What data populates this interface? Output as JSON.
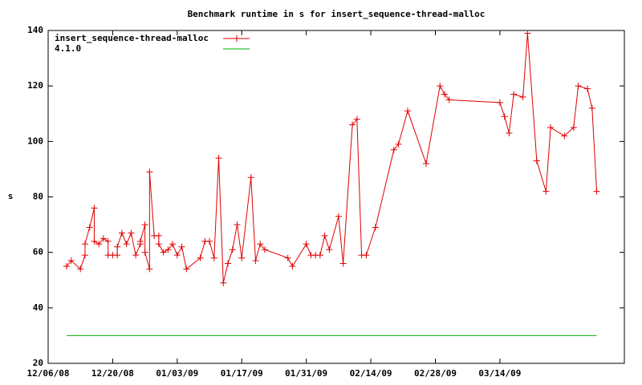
{
  "chart_data": {
    "type": "line",
    "title": "Benchmark runtime in s for insert_sequence-thread-malloc",
    "ylabel": "s",
    "xlim": [
      "12/06/08",
      "04/10/09"
    ],
    "xticks": [
      "12/06/08",
      "12/20/08",
      "01/03/09",
      "01/17/09",
      "01/31/09",
      "02/14/09",
      "02/28/09",
      "03/14/09"
    ],
    "ylim": [
      20,
      140
    ],
    "yticks": [
      20,
      40,
      60,
      80,
      100,
      120,
      140
    ],
    "legend": "top-left",
    "series": [
      {
        "name": "insert_sequence-thread-malloc",
        "color": "#e00000",
        "markers": true,
        "x": [
          "12/10/08",
          "12/11/08",
          "12/13/08",
          "12/14/08",
          "12/14/08",
          "12/15/08",
          "12/16/08",
          "12/16/08",
          "12/17/08",
          "12/18/08",
          "12/19/08",
          "12/19/08",
          "12/20/08",
          "12/21/08",
          "12/21/08",
          "12/22/08",
          "12/23/08",
          "12/24/08",
          "12/25/08",
          "12/26/08",
          "12/26/08",
          "12/27/08",
          "12/27/08",
          "12/28/08",
          "12/28/08",
          "12/29/08",
          "12/30/08",
          "12/30/08",
          "12/31/08",
          "01/01/09",
          "01/02/09",
          "01/03/09",
          "01/04/09",
          "01/05/09",
          "01/08/09",
          "01/09/09",
          "01/10/09",
          "01/11/09",
          "01/12/09",
          "01/13/09",
          "01/14/09",
          "01/15/09",
          "01/16/09",
          "01/17/09",
          "01/19/09",
          "01/20/09",
          "01/21/09",
          "01/22/09",
          "01/27/09",
          "01/28/09",
          "01/31/09",
          "02/01/09",
          "02/02/09",
          "02/03/09",
          "02/04/09",
          "02/05/09",
          "02/07/09",
          "02/08/09",
          "02/10/09",
          "02/11/09",
          "02/12/09",
          "02/13/09",
          "02/15/09",
          "02/19/09",
          "02/20/09",
          "02/22/09",
          "02/26/09",
          "03/01/09",
          "03/02/09",
          "03/03/09",
          "03/14/09",
          "03/15/09",
          "03/16/09",
          "03/17/09",
          "03/19/09",
          "03/20/09",
          "03/22/09",
          "03/24/09",
          "03/25/09",
          "03/28/09",
          "03/30/09",
          "03/31/09",
          "04/02/09",
          "04/03/09",
          "04/04/09"
        ],
        "values": [
          55,
          57,
          54,
          59,
          63,
          69,
          76,
          64,
          63,
          65,
          64,
          59,
          59,
          59,
          62,
          67,
          63,
          67,
          59,
          63,
          64,
          70,
          60,
          54,
          89,
          66,
          66,
          63,
          60,
          61,
          63,
          59,
          62,
          54,
          58,
          64,
          64,
          58,
          94,
          49,
          56,
          61,
          70,
          58,
          87,
          57,
          63,
          61,
          58,
          55,
          63,
          59,
          59,
          59,
          66,
          61,
          73,
          56,
          106,
          108,
          59,
          59,
          69,
          97,
          99,
          111,
          92,
          120,
          117,
          115,
          114,
          109,
          103,
          117,
          116,
          139,
          93,
          82,
          105,
          102,
          105,
          120,
          119,
          112,
          82
        ]
      },
      {
        "name": "4.1.0",
        "color": "#00b000",
        "markers": false,
        "x": [
          "12/10/08",
          "04/04/09"
        ],
        "values": [
          30,
          30
        ]
      }
    ]
  }
}
